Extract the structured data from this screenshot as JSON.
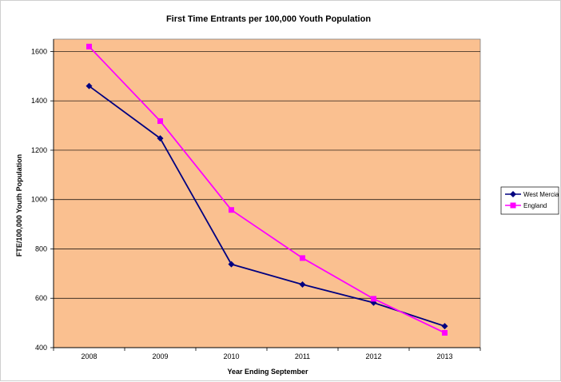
{
  "chart_data": {
    "type": "line",
    "title": "First Time Entrants per 100,000 Youth Population",
    "xlabel": "Year Ending September",
    "ylabel": "FTE/100,000 Youth Population",
    "categories": [
      "2008",
      "2009",
      "2010",
      "2011",
      "2012",
      "2013"
    ],
    "ylim": [
      400,
      1650
    ],
    "yticks": [
      400,
      600,
      800,
      1000,
      1200,
      1400,
      1600
    ],
    "grid": true,
    "legend": "right",
    "plot_background": "#FAC090",
    "series": [
      {
        "name": "West Mercia",
        "color": "#000080",
        "marker": "diamond",
        "values": [
          1460,
          1248,
          738,
          656,
          582,
          487
        ]
      },
      {
        "name": "England",
        "color": "#FF00FF",
        "marker": "square",
        "values": [
          1620,
          1318,
          958,
          763,
          598,
          460
        ]
      }
    ]
  }
}
